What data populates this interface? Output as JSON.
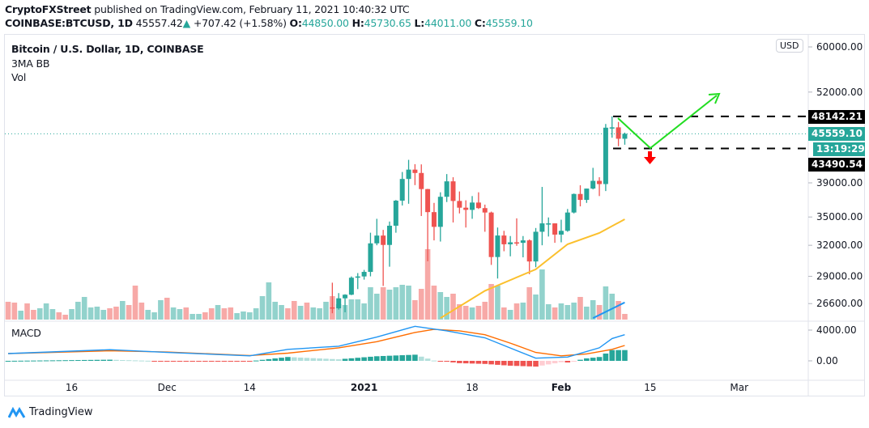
{
  "header": {
    "publisher": "CryptoFXStreet",
    "published_text": "published on TradingView.com, February 11, 2021 10:40:32 UTC",
    "symbol": "COINBASE:BTCUSD, 1D",
    "last": "45557.42",
    "change": "+707.42 (+1.58%)",
    "o_label": "O:",
    "o": "44850.00",
    "h_label": "H:",
    "h": "45730.65",
    "l_label": "L:",
    "l": "44011.00",
    "c_label": "C:",
    "c": "45559.10"
  },
  "legend": {
    "title": "Bitcoin / U.S. Dollar, 1D, COINBASE",
    "indicator": "3MA BB",
    "volume": "Vol",
    "macd": "MACD"
  },
  "currency_button": "USD",
  "badges": {
    "resistance": "48142.21",
    "price": "45559.10",
    "countdown": "13:19:29",
    "support": "43490.54"
  },
  "footer": {
    "brand": "TradingView"
  },
  "colors": {
    "up": "#26a69a",
    "down": "#ef5350",
    "vol_up": "#92d2cc",
    "vol_down": "#f7a9a7",
    "macd": "#2196f3",
    "signal": "#ff6d00",
    "ma": "#fbc02d",
    "ma2": "#2196f3",
    "arrow_green": "#22dd22",
    "arrow_red": "#ff0000"
  },
  "chart_data": {
    "type": "candlestick",
    "title": "Bitcoin / U.S. Dollar, 1D, COINBASE",
    "start_date": "2020-11-06",
    "price_scale": "log",
    "price_axis": [
      60000,
      52000,
      39000,
      35000,
      32000,
      29000,
      26600
    ],
    "time_axis": [
      {
        "label": "16",
        "date": "2020-11-16"
      },
      {
        "label": "Dec",
        "date": "2020-12-01"
      },
      {
        "label": "14",
        "date": "2020-12-14"
      },
      {
        "label": "2021",
        "date": "2021-01-01"
      },
      {
        "label": "18",
        "date": "2021-01-18"
      },
      {
        "label": "Feb",
        "date": "2021-02-01"
      },
      {
        "label": "15",
        "date": "2021-02-15"
      },
      {
        "label": "Mar",
        "date": "2021-03-01"
      }
    ],
    "candles_columns": [
      "date",
      "open",
      "high",
      "low",
      "close"
    ],
    "candles": [
      [
        "2020-12-27",
        26281,
        28422,
        25800,
        26207
      ],
      [
        "2020-12-28",
        26207,
        27500,
        26100,
        27050
      ],
      [
        "2020-12-29",
        27050,
        27400,
        25880,
        27360
      ],
      [
        "2020-12-30",
        27360,
        28990,
        27320,
        28875
      ],
      [
        "2020-12-31",
        28875,
        29300,
        27850,
        28990
      ],
      [
        "2021-01-01",
        28990,
        29600,
        28700,
        29412
      ],
      [
        "2021-01-02",
        29412,
        33300,
        29000,
        32195
      ],
      [
        "2021-01-03",
        32195,
        34800,
        32000,
        33000
      ],
      [
        "2021-01-04",
        33000,
        33600,
        28130,
        32035
      ],
      [
        "2021-01-05",
        32035,
        34500,
        29900,
        34047
      ],
      [
        "2021-01-06",
        34047,
        36939,
        33300,
        36860
      ],
      [
        "2021-01-07",
        36860,
        40365,
        36300,
        39486
      ],
      [
        "2021-01-08",
        39486,
        41950,
        36500,
        40670
      ],
      [
        "2021-01-09",
        40670,
        41380,
        38720,
        40240
      ],
      [
        "2021-01-10",
        40240,
        41350,
        35111,
        38240
      ],
      [
        "2021-01-11",
        38240,
        38264,
        30420,
        35545
      ],
      [
        "2021-01-12",
        35545,
        36600,
        32500,
        33925
      ],
      [
        "2021-01-13",
        33925,
        37850,
        32380,
        37316
      ],
      [
        "2021-01-14",
        37316,
        40100,
        36700,
        39187
      ],
      [
        "2021-01-15",
        39187,
        39700,
        34400,
        36825
      ],
      [
        "2021-01-16",
        36825,
        37950,
        35400,
        36050
      ],
      [
        "2021-01-17",
        36050,
        36900,
        33850,
        35800
      ],
      [
        "2021-01-18",
        35800,
        37400,
        34800,
        36640
      ],
      [
        "2021-01-19",
        36640,
        37850,
        35900,
        36000
      ],
      [
        "2021-01-20",
        36000,
        36400,
        33400,
        35500
      ],
      [
        "2021-01-21",
        35500,
        35600,
        30070,
        30830
      ],
      [
        "2021-01-22",
        30830,
        33850,
        28800,
        33005
      ],
      [
        "2021-01-23",
        33005,
        33500,
        31400,
        32100
      ],
      [
        "2021-01-24",
        32100,
        32950,
        30900,
        32300
      ],
      [
        "2021-01-25",
        32300,
        34850,
        31950,
        32250
      ],
      [
        "2021-01-26",
        32250,
        32950,
        30800,
        32500
      ],
      [
        "2021-01-27",
        32500,
        32600,
        29200,
        30400
      ],
      [
        "2021-01-28",
        30400,
        33800,
        29850,
        33400
      ],
      [
        "2021-01-29",
        33400,
        38500,
        32000,
        34300
      ],
      [
        "2021-01-30",
        34300,
        34950,
        32900,
        34300
      ],
      [
        "2021-01-31",
        34300,
        34300,
        32250,
        33100
      ],
      [
        "2021-02-01",
        33100,
        34700,
        32300,
        33500
      ],
      [
        "2021-02-02",
        33500,
        35900,
        33400,
        35500
      ],
      [
        "2021-02-03",
        35500,
        37700,
        35400,
        37650
      ],
      [
        "2021-02-04",
        37650,
        38700,
        36200,
        36950
      ],
      [
        "2021-02-05",
        36950,
        38300,
        36600,
        38300
      ],
      [
        "2021-02-06",
        38300,
        40900,
        38200,
        39250
      ],
      [
        "2021-02-07",
        39250,
        39700,
        37400,
        38850
      ],
      [
        "2021-02-08",
        38850,
        47000,
        38000,
        46450
      ],
      [
        "2021-02-09",
        46450,
        48142,
        45000,
        46500
      ],
      [
        "2021-02-10",
        46500,
        47300,
        43800,
        44850
      ],
      [
        "2021-02-11",
        44850,
        45730.65,
        44011,
        45559.1
      ]
    ],
    "volume_relative": [
      22,
      21,
      11,
      20,
      12,
      14,
      20,
      13,
      9,
      6,
      13,
      22,
      28,
      15,
      16,
      12,
      14,
      16,
      23,
      18,
      42,
      21,
      12,
      9,
      24,
      27,
      15,
      13,
      15,
      7,
      7,
      9,
      14,
      18,
      14,
      15,
      8,
      10,
      9,
      14,
      29,
      46,
      22,
      18,
      14,
      23,
      17,
      21,
      15,
      14,
      22,
      29,
      19,
      18,
      25,
      25,
      20,
      40,
      32,
      40,
      37,
      40,
      43,
      42,
      24,
      38,
      87,
      42,
      34,
      28,
      32,
      19,
      17,
      15,
      17,
      22,
      44,
      42,
      15,
      12,
      20,
      21,
      40,
      31,
      62,
      19,
      15,
      20,
      18,
      21,
      28,
      16,
      24,
      18,
      41,
      32,
      23,
      7
    ],
    "volume_up": "rrgrrgggrrggggggrrgrrrgggrggrggrrgrrggggggggrrgrgggrgggggggrggggrrrrggrrrgrrrgrgrgrgggrgggrggrgg",
    "ma_line": [
      [
        "2021-01-13",
        25400
      ],
      [
        "2021-01-20",
        27700
      ],
      [
        "2021-01-28",
        29650
      ],
      [
        "2021-02-02",
        32100
      ],
      [
        "2021-02-07",
        33270
      ],
      [
        "2021-02-11",
        34750
      ]
    ],
    "ma2_line": [
      [
        "2021-02-06",
        25400
      ],
      [
        "2021-02-11",
        26700
      ]
    ],
    "macd_axis": [
      4000,
      0
    ],
    "macd": [
      [
        "2020-11-06",
        950
      ],
      [
        "2020-11-22",
        1450
      ],
      [
        "2020-12-01",
        1100
      ],
      [
        "2020-12-14",
        650
      ],
      [
        "2020-12-20",
        1500
      ],
      [
        "2020-12-28",
        1900
      ],
      [
        "2021-01-03",
        3100
      ],
      [
        "2021-01-09",
        4500
      ],
      [
        "2021-01-14",
        3900
      ],
      [
        "2021-01-20",
        3000
      ],
      [
        "2021-01-23",
        2000
      ],
      [
        "2021-01-28",
        350
      ],
      [
        "2021-02-02",
        500
      ],
      [
        "2021-02-07",
        1700
      ],
      [
        "2021-02-09",
        2900
      ],
      [
        "2021-02-11",
        3400
      ]
    ],
    "signal": [
      [
        "2020-11-06",
        950
      ],
      [
        "2020-11-22",
        1300
      ],
      [
        "2020-12-01",
        1150
      ],
      [
        "2020-12-14",
        700
      ],
      [
        "2020-12-20",
        1000
      ],
      [
        "2020-12-28",
        1700
      ],
      [
        "2021-01-03",
        2500
      ],
      [
        "2021-01-09",
        3700
      ],
      [
        "2021-01-12",
        4100
      ],
      [
        "2021-01-16",
        3900
      ],
      [
        "2021-01-20",
        3400
      ],
      [
        "2021-01-24",
        2300
      ],
      [
        "2021-01-28",
        1100
      ],
      [
        "2021-02-01",
        650
      ],
      [
        "2021-02-05",
        900
      ],
      [
        "2021-02-09",
        1500
      ],
      [
        "2021-02-11",
        2000
      ]
    ],
    "levels": {
      "resistance": 48142.21,
      "support": 43490.54,
      "last_close": 45559.1
    }
  }
}
